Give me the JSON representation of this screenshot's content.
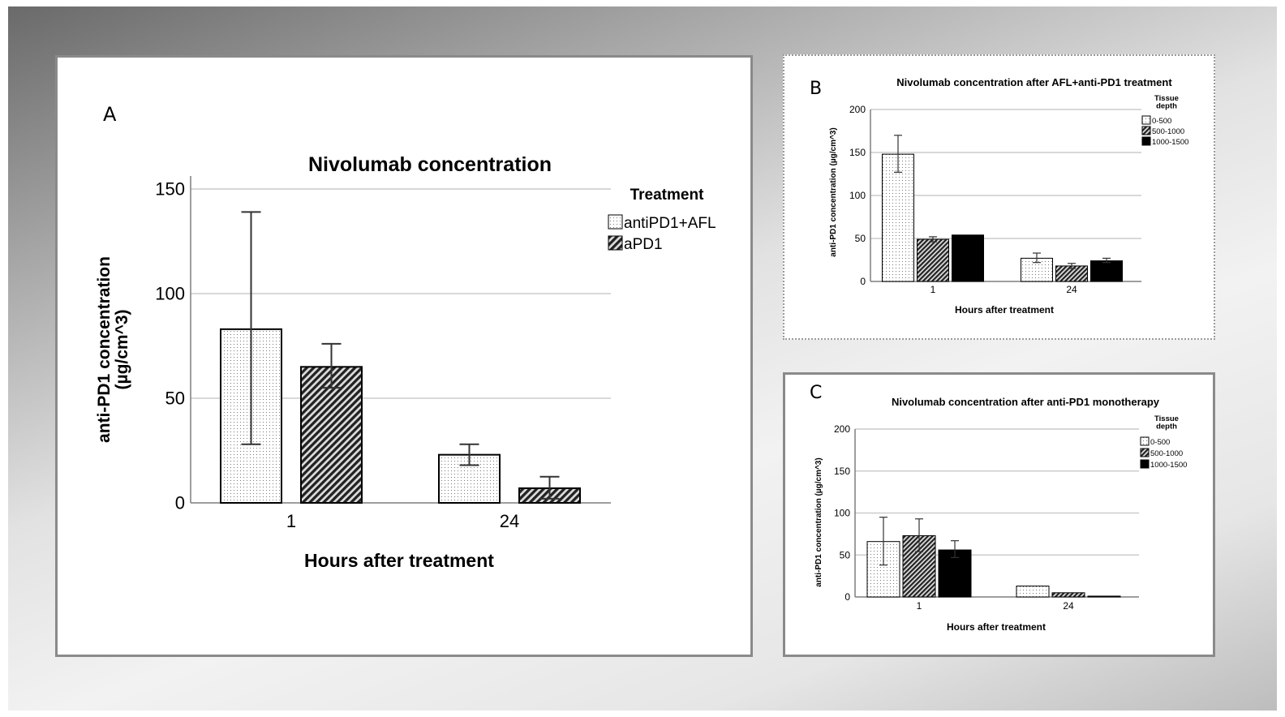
{
  "panels": {
    "a": {
      "letter": "A"
    },
    "b": {
      "letter": "B"
    },
    "c": {
      "letter": "C"
    }
  },
  "colors": {
    "bar_stroke": "#000000",
    "grid": "#cccccc",
    "axis": "#7f7f7f"
  },
  "chart_data": [
    {
      "id": "A",
      "type": "bar",
      "title": "Nivolumab concentration",
      "xlabel": "Hours after treatment",
      "ylabel_line1": "anti-PD1 concentration",
      "ylabel_line2": "(µg/cm^3)",
      "legend_title": "Treatment",
      "legend_position": "top-right",
      "categories": [
        "1",
        "24"
      ],
      "ylim": [
        0,
        150
      ],
      "yticks": [
        0,
        50,
        100,
        150
      ],
      "grid": true,
      "series": [
        {
          "name": "antiPD1+AFL",
          "pattern": "dots",
          "values": [
            83,
            23
          ],
          "err_low": [
            28,
            18
          ],
          "err_high": [
            139,
            28
          ]
        },
        {
          "name": "aPD1",
          "pattern": "hatch",
          "values": [
            65,
            7
          ],
          "err_low": [
            55,
            2
          ],
          "err_high": [
            76,
            12.5
          ]
        }
      ]
    },
    {
      "id": "B",
      "type": "bar",
      "title": "Nivolumab concentration after AFL+anti-PD1 treatment",
      "xlabel": "Hours after treatment",
      "ylabel": "anti-PD1 concentration (µg/cm^3)",
      "legend_title_line1": "Tissue",
      "legend_title_line2": "depth",
      "legend_position": "top-right",
      "categories": [
        "1",
        "24"
      ],
      "ylim": [
        0,
        200
      ],
      "yticks": [
        0,
        50,
        100,
        150,
        200
      ],
      "grid": true,
      "series": [
        {
          "name": "0-500",
          "pattern": "dots",
          "values": [
            148,
            27
          ],
          "err_low": [
            127,
            22
          ],
          "err_high": [
            170,
            33
          ]
        },
        {
          "name": "500-1000",
          "pattern": "hatch",
          "values": [
            49,
            18
          ],
          "err_low": [
            46,
            15
          ],
          "err_high": [
            52,
            21
          ]
        },
        {
          "name": "1000-1500",
          "pattern": "solid",
          "values": [
            54,
            24
          ],
          "err_low": null,
          "err_high": null,
          "err_low_24": 22,
          "err_high_24": 27
        }
      ]
    },
    {
      "id": "C",
      "type": "bar",
      "title": "Nivolumab concentration after anti-PD1 monotherapy",
      "xlabel": "Hours after treatment",
      "ylabel": "anti-PD1 concentration (µg/cm^3)",
      "legend_title_line1": "Tissue",
      "legend_title_line2": "depth",
      "legend_position": "top-right",
      "categories": [
        "1",
        "24"
      ],
      "ylim": [
        0,
        200
      ],
      "yticks": [
        0,
        50,
        100,
        150,
        200
      ],
      "grid": true,
      "series": [
        {
          "name": "0-500",
          "pattern": "dots",
          "values": [
            66,
            13
          ],
          "err_low": [
            38,
            null
          ],
          "err_high": [
            95,
            null
          ]
        },
        {
          "name": "500-1000",
          "pattern": "hatch",
          "values": [
            73,
            5
          ],
          "err_low": [
            54,
            null
          ],
          "err_high": [
            93,
            null
          ]
        },
        {
          "name": "1000-1500",
          "pattern": "solid",
          "values": [
            56,
            1
          ],
          "err_low": [
            47,
            null
          ],
          "err_high": [
            67,
            null
          ]
        }
      ]
    }
  ]
}
